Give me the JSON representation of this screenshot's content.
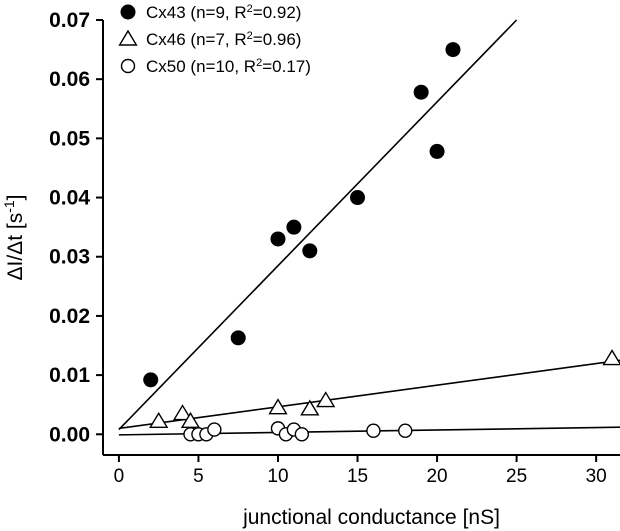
{
  "chart_data": {
    "type": "scatter",
    "title": "",
    "xlabel": "junctional conductance [nS]",
    "ylabel_main": "ΔI/Δt [s",
    "ylabel_sup": "-1",
    "ylabel_close": "]",
    "xlim": [
      -1,
      31.5
    ],
    "ylim": [
      -0.0035,
      0.07
    ],
    "x_ticks": [
      0,
      5,
      10,
      15,
      20,
      25,
      30
    ],
    "x_tick_labels": [
      "0",
      "5",
      "10",
      "15",
      "20",
      "25",
      "30"
    ],
    "y_ticks": [
      0.0,
      0.01,
      0.02,
      0.03,
      0.04,
      0.05,
      0.06,
      0.07
    ],
    "y_tick_labels": [
      "0.00",
      "0.01",
      "0.02",
      "0.03",
      "0.04",
      "0.05",
      "0.06",
      "0.07"
    ],
    "grid": false,
    "legend_position": "top-left",
    "series": [
      {
        "name": "Cx43 (n=9, R²=0.92)",
        "label_pre": "Cx43 (n=9, R",
        "label_sup": "2",
        "label_post": "=0.92)",
        "marker": "filled-circle",
        "points": [
          {
            "x": 2.0,
            "y": 0.0092
          },
          {
            "x": 7.5,
            "y": 0.0163
          },
          {
            "x": 10.0,
            "y": 0.033
          },
          {
            "x": 11.0,
            "y": 0.035
          },
          {
            "x": 12.0,
            "y": 0.031
          },
          {
            "x": 15.0,
            "y": 0.04
          },
          {
            "x": 19.0,
            "y": 0.0578
          },
          {
            "x": 20.0,
            "y": 0.0478
          },
          {
            "x": 21.0,
            "y": 0.065
          }
        ],
        "fit": {
          "x0": 0,
          "y0": 0.0008,
          "x1": 25.0,
          "y1": 0.07
        }
      },
      {
        "name": "Cx46 (n=7, R²=0.96)",
        "label_pre": "Cx46 (n=7, R",
        "label_sup": "2",
        "label_post": "=0.96)",
        "marker": "open-triangle",
        "points": [
          {
            "x": 2.5,
            "y": 0.0022
          },
          {
            "x": 4.0,
            "y": 0.0035
          },
          {
            "x": 4.5,
            "y": 0.0022
          },
          {
            "x": 10.0,
            "y": 0.0045
          },
          {
            "x": 12.0,
            "y": 0.0043
          },
          {
            "x": 13.0,
            "y": 0.0057
          },
          {
            "x": 31.0,
            "y": 0.0128
          }
        ],
        "fit": {
          "x0": 0,
          "y0": 0.001,
          "x1": 31.5,
          "y1": 0.0125
        }
      },
      {
        "name": "Cx50 (n=10, R²=0.17)",
        "label_pre": "Cx50 (n=10, R",
        "label_sup": "2",
        "label_post": "=0.17)",
        "marker": "open-circle",
        "points": [
          {
            "x": 4.5,
            "y": 0.0
          },
          {
            "x": 5.0,
            "y": 0.0
          },
          {
            "x": 5.5,
            "y": 0.0
          },
          {
            "x": 6.0,
            "y": 0.0008
          },
          {
            "x": 10.0,
            "y": 0.001
          },
          {
            "x": 10.5,
            "y": 0.0
          },
          {
            "x": 11.0,
            "y": 0.0008
          },
          {
            "x": 11.5,
            "y": 0.0
          },
          {
            "x": 16.0,
            "y": 0.0006
          },
          {
            "x": 18.0,
            "y": 0.0006
          }
        ],
        "fit": {
          "x0": 0,
          "y0": -0.0001,
          "x1": 31.5,
          "y1": 0.0012
        }
      }
    ]
  }
}
